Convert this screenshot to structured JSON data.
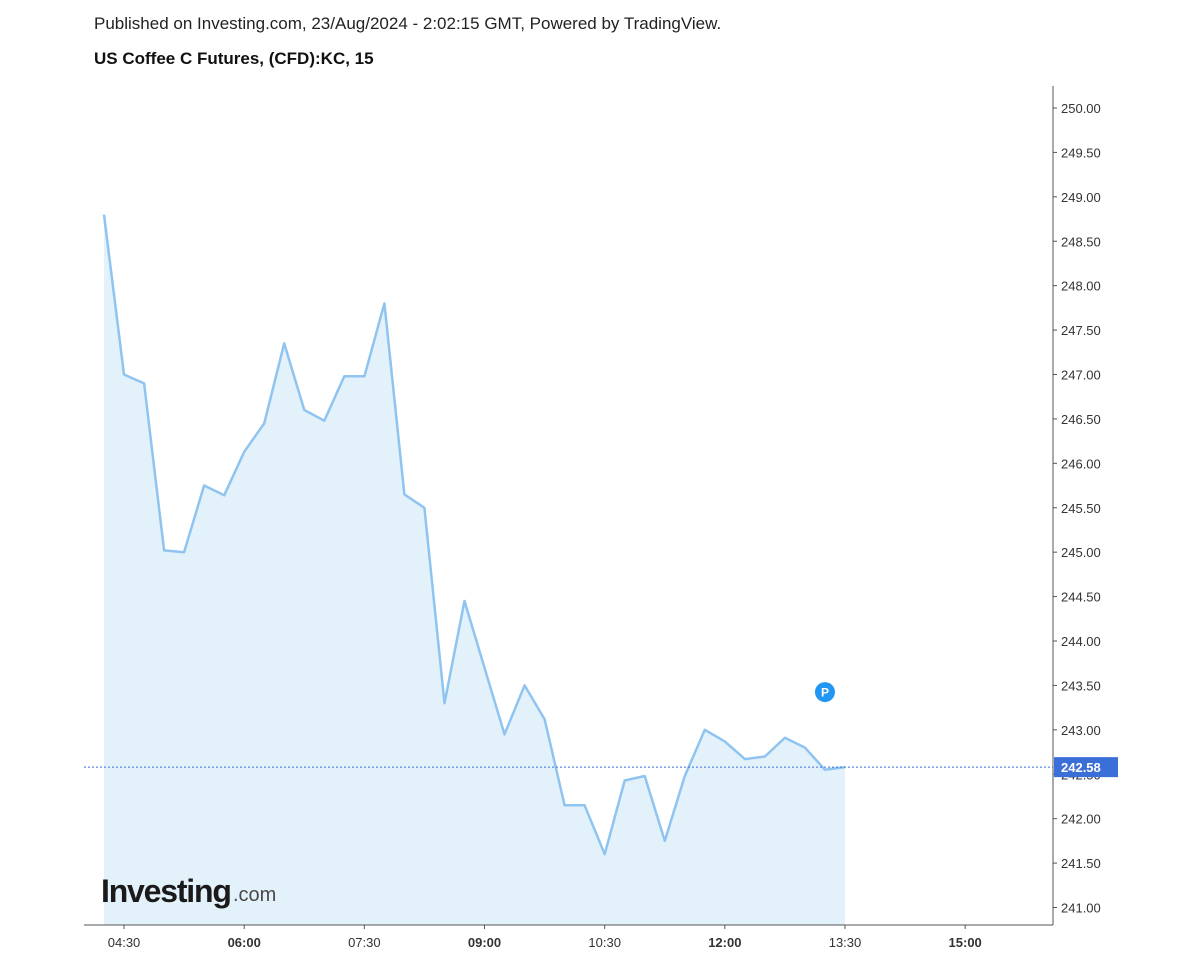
{
  "header": {
    "published": "Published on Investing.com, 23/Aug/2024 - 2:02:15 GMT, Powered by TradingView.",
    "title": "US Coffee C Futures, (CFD):KC, 15"
  },
  "logo": {
    "main": "Investing",
    "suffix": ".com"
  },
  "marker": {
    "letter": "P",
    "time": "13:15",
    "price": 243.2
  },
  "colors": {
    "line": "#90c4f0",
    "fill": "#e3f1fb",
    "price_line": "#3a6fd8",
    "price_badge": "#3a6fd8",
    "marker": "#2196f3",
    "axis": "#555555"
  },
  "chart_data": {
    "type": "area",
    "title": "US Coffee C Futures, (CFD):KC, 15",
    "x_ticks": [
      {
        "label": "04:30",
        "minutes": 270,
        "bold": false
      },
      {
        "label": "06:00",
        "minutes": 360,
        "bold": true
      },
      {
        "label": "07:30",
        "minutes": 450,
        "bold": false
      },
      {
        "label": "09:00",
        "minutes": 540,
        "bold": true
      },
      {
        "label": "10:30",
        "minutes": 630,
        "bold": false
      },
      {
        "label": "12:00",
        "minutes": 720,
        "bold": true
      },
      {
        "label": "13:30",
        "minutes": 810,
        "bold": false
      },
      {
        "label": "15:00",
        "minutes": 900,
        "bold": true
      }
    ],
    "x_range_minutes": [
      250,
      950
    ],
    "y_ticks": [
      "241.00",
      "241.50",
      "242.00",
      "242.50",
      "243.00",
      "243.50",
      "244.00",
      "244.50",
      "245.00",
      "245.50",
      "246.00",
      "246.50",
      "247.00",
      "247.50",
      "248.00",
      "248.50",
      "249.00",
      "249.50",
      "250.00"
    ],
    "ylim": [
      240.85,
      250.25
    ],
    "current_price": "242.58",
    "series": [
      {
        "x": [
          "04:15",
          "04:30",
          "04:45",
          "05:00",
          "05:15",
          "05:30",
          "05:45",
          "06:00",
          "06:15",
          "06:30",
          "06:45",
          "07:00",
          "07:15",
          "07:30",
          "07:45",
          "08:00",
          "08:15",
          "08:30",
          "08:45",
          "09:00",
          "09:15",
          "09:30",
          "09:45",
          "10:00",
          "10:15",
          "10:30",
          "10:45",
          "11:00",
          "11:15",
          "11:30",
          "11:45",
          "12:00",
          "12:15",
          "12:30",
          "12:45",
          "13:00",
          "13:15",
          "13:30"
        ],
        "values": [
          248.8,
          247.0,
          246.9,
          245.02,
          245.0,
          245.75,
          245.64,
          246.13,
          246.45,
          247.35,
          246.6,
          246.48,
          246.98,
          246.98,
          247.8,
          245.65,
          245.5,
          243.3,
          244.45,
          243.7,
          242.95,
          243.5,
          243.12,
          242.15,
          242.15,
          241.6,
          242.43,
          242.48,
          241.75,
          242.48,
          243.0,
          242.87,
          242.67,
          242.7,
          242.91,
          242.8,
          242.55,
          242.58
        ]
      }
    ],
    "grid": false
  }
}
